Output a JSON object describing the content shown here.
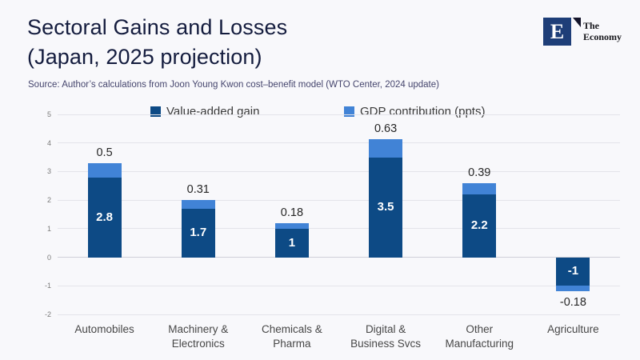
{
  "header": {
    "title_line1": "Sectoral Gains and Losses",
    "title_line2": "(Japan, 2025 projection)",
    "source": "Source:  Author’s calculations from Joon Young Kwon cost–benefit model (WTO Center, 2024 update)",
    "logo": {
      "letter": "E",
      "name_line1": "The",
      "name_line2": "Economy"
    }
  },
  "colors": {
    "background": "#f8f8fb",
    "value_added": "#0d4a85",
    "gdp_contribution": "#4183d6",
    "gridline": "#e4e4ea",
    "zero_line": "#cfcfd8",
    "title_text": "#141c3e",
    "source_text": "#45456d",
    "logo_square": "#1e3e78"
  },
  "chart_data": {
    "type": "bar",
    "stacked": true,
    "title": "Sectoral Gains and Losses (Japan, 2025 projection)",
    "xlabel": "",
    "ylabel": "",
    "categories": [
      "Automobiles",
      "Machinery &\nElectronics",
      "Chemicals &\nPharma",
      "Digital &\nBusiness Svcs",
      "Other\nManufacturing",
      "Agriculture"
    ],
    "series": [
      {
        "name": "Value-added gain",
        "color": "#0d4a85",
        "values": [
          2.8,
          1.7,
          1,
          3.5,
          2.2,
          -1
        ]
      },
      {
        "name": "GDP contribution (ppts)",
        "color": "#4183d6",
        "values": [
          0.5,
          0.31,
          0.18,
          0.63,
          0.39,
          -0.18
        ]
      }
    ],
    "inside_labels": [
      "2.8",
      "1.7",
      "1",
      "3.5",
      "2.2",
      "-1"
    ],
    "outside_labels": [
      "0.5",
      "0.31",
      "0.18",
      "0.63",
      "0.39",
      "-0.18"
    ],
    "y_ticks": [
      5,
      4,
      3,
      2,
      1,
      0,
      -1,
      -2
    ],
    "ylim": [
      -2,
      5
    ],
    "grid": true,
    "legend_position": "top"
  }
}
